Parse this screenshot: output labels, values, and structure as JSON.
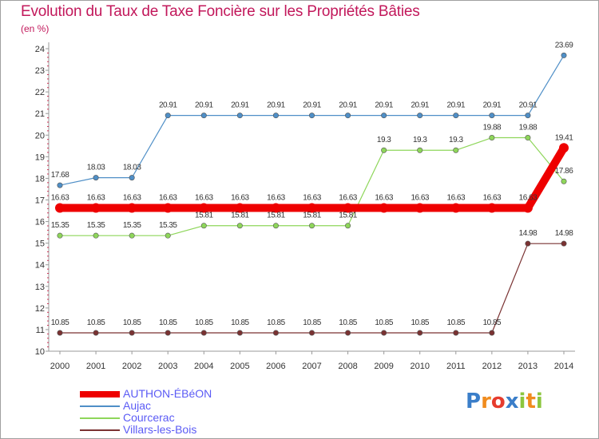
{
  "title": "Evolution du Taux de Taxe Foncière sur les Propriétés Bâties",
  "unit": "(en %)",
  "logo": {
    "text": "Proxiti",
    "letters": [
      "P",
      "r",
      "o",
      "x",
      "i",
      "t",
      "i"
    ],
    "colors": [
      "#3a7ec9",
      "#f08c1e",
      "#e63c2e",
      "#3a7ec9",
      "#8cc63e",
      "#f08c1e",
      "#8cc63e"
    ]
  },
  "chart_data": {
    "type": "line",
    "title": "Evolution du Taux de Taxe Foncière sur les Propriétés Bâties",
    "ylabel": "(en %)",
    "xlabel": "",
    "categories": [
      "2000",
      "2001",
      "2002",
      "2003",
      "2004",
      "2005",
      "2006",
      "2007",
      "2008",
      "2009",
      "2010",
      "2011",
      "2012",
      "2013",
      "2014"
    ],
    "ylim": [
      10,
      24
    ],
    "yticks": [
      10,
      11,
      12,
      13,
      14,
      15,
      16,
      17,
      18,
      19,
      20,
      21,
      22,
      23,
      24
    ],
    "grid": false,
    "series": [
      {
        "name": "AUTHON-ÉBéON",
        "color": "#ee0000",
        "thick": true,
        "values": [
          16.63,
          16.63,
          16.63,
          16.63,
          16.63,
          16.63,
          16.63,
          16.63,
          16.63,
          16.63,
          16.63,
          16.63,
          16.63,
          16.63,
          19.41
        ],
        "labels": [
          "16.63",
          "16.63",
          "16.63",
          "16.63",
          "16.63",
          "16.63",
          "16.63",
          "16.63",
          "16.63",
          "16.63",
          "16.63",
          "16.63",
          "16.63",
          "16.63",
          "19.41"
        ]
      },
      {
        "name": "Aujac",
        "color": "#4f8fc7",
        "thick": false,
        "values": [
          17.68,
          18.03,
          18.03,
          20.91,
          20.91,
          20.91,
          20.91,
          20.91,
          20.91,
          20.91,
          20.91,
          20.91,
          20.91,
          20.91,
          23.69
        ],
        "labels": [
          "17.68",
          "18.03",
          "18.03",
          "20.91",
          "20.91",
          "20.91",
          "20.91",
          "20.91",
          "20.91",
          "20.91",
          "20.91",
          "20.91",
          "20.91",
          "20.91",
          "23.69"
        ]
      },
      {
        "name": "Courcerac",
        "color": "#8ed65a",
        "thick": false,
        "values": [
          15.35,
          15.35,
          15.35,
          15.35,
          15.81,
          15.81,
          15.81,
          15.81,
          15.81,
          19.3,
          19.3,
          19.3,
          19.88,
          19.88,
          17.86
        ],
        "labels": [
          "15.35",
          "15.35",
          "15.35",
          "15.35",
          "15.81",
          "15.81",
          "15.81",
          "15.81",
          "15.81",
          "19.3",
          "19.3",
          "19.3",
          "19.88",
          "19.88",
          "17.86"
        ]
      },
      {
        "name": "Villars-les-Bois",
        "color": "#7a3232",
        "thick": false,
        "values": [
          10.85,
          10.85,
          10.85,
          10.85,
          10.85,
          10.85,
          10.85,
          10.85,
          10.85,
          10.85,
          10.85,
          10.85,
          10.85,
          14.98,
          14.98
        ],
        "labels": [
          "10.85",
          "10.85",
          "10.85",
          "10.85",
          "10.85",
          "10.85",
          "10.85",
          "10.85",
          "10.85",
          "10.85",
          "10.85",
          "10.85",
          "10.85",
          "14.98",
          "14.98"
        ]
      }
    ],
    "legend": {
      "position": "bottom-left",
      "entries": [
        "AUTHON-ÉBéON",
        "Aujac",
        "Courcerac",
        "Villars-les-Bois"
      ]
    }
  }
}
